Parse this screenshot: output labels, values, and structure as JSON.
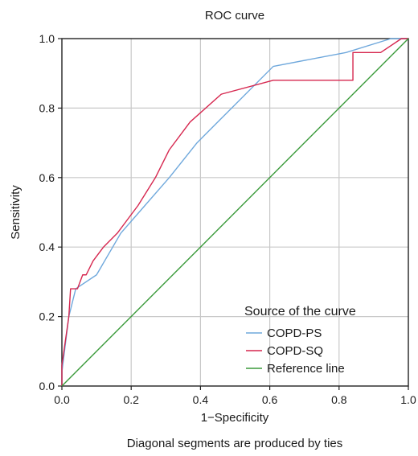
{
  "chart_data": {
    "type": "line",
    "title": "ROC curve",
    "xlabel": "1−Specificity",
    "ylabel": "Sensitivity",
    "footnote": "Diagonal segments are produced by ties",
    "xlim": [
      0,
      1
    ],
    "ylim": [
      0,
      1
    ],
    "x_ticks": [
      "0.0",
      "0.2",
      "0.4",
      "0.6",
      "0.8",
      "1.0"
    ],
    "y_ticks": [
      "0.0",
      "0.2",
      "0.4",
      "0.6",
      "0.8",
      "1.0"
    ],
    "grid": true,
    "legend": {
      "title": "Source of the curve",
      "placement": "bottom-right"
    },
    "series": [
      {
        "name": "COPD-PS",
        "color": "#6fa8dc",
        "points": [
          [
            0,
            0
          ],
          [
            0,
            0.04
          ],
          [
            0.02,
            0.2
          ],
          [
            0.04,
            0.28
          ],
          [
            0.1,
            0.32
          ],
          [
            0.17,
            0.44
          ],
          [
            0.24,
            0.52
          ],
          [
            0.31,
            0.6
          ],
          [
            0.39,
            0.7
          ],
          [
            0.45,
            0.76
          ],
          [
            0.61,
            0.92
          ],
          [
            0.82,
            0.96
          ],
          [
            0.95,
            1.0
          ],
          [
            1.0,
            1.0
          ]
        ]
      },
      {
        "name": "COPD-SQ",
        "color": "#d6274f",
        "points": [
          [
            0,
            0
          ],
          [
            0,
            0.06
          ],
          [
            0.02,
            0.2
          ],
          [
            0.025,
            0.28
          ],
          [
            0.045,
            0.28
          ],
          [
            0.06,
            0.32
          ],
          [
            0.07,
            0.32
          ],
          [
            0.09,
            0.36
          ],
          [
            0.12,
            0.4
          ],
          [
            0.16,
            0.44
          ],
          [
            0.19,
            0.48
          ],
          [
            0.22,
            0.52
          ],
          [
            0.27,
            0.6
          ],
          [
            0.31,
            0.68
          ],
          [
            0.37,
            0.76
          ],
          [
            0.46,
            0.84
          ],
          [
            0.61,
            0.88
          ],
          [
            0.84,
            0.88
          ],
          [
            0.84,
            0.96
          ],
          [
            0.92,
            0.96
          ],
          [
            0.98,
            1.0
          ],
          [
            1.0,
            1.0
          ]
        ]
      },
      {
        "name": "Reference line",
        "color": "#3a9a3a",
        "points": [
          [
            0,
            0
          ],
          [
            1,
            1
          ]
        ]
      }
    ]
  }
}
